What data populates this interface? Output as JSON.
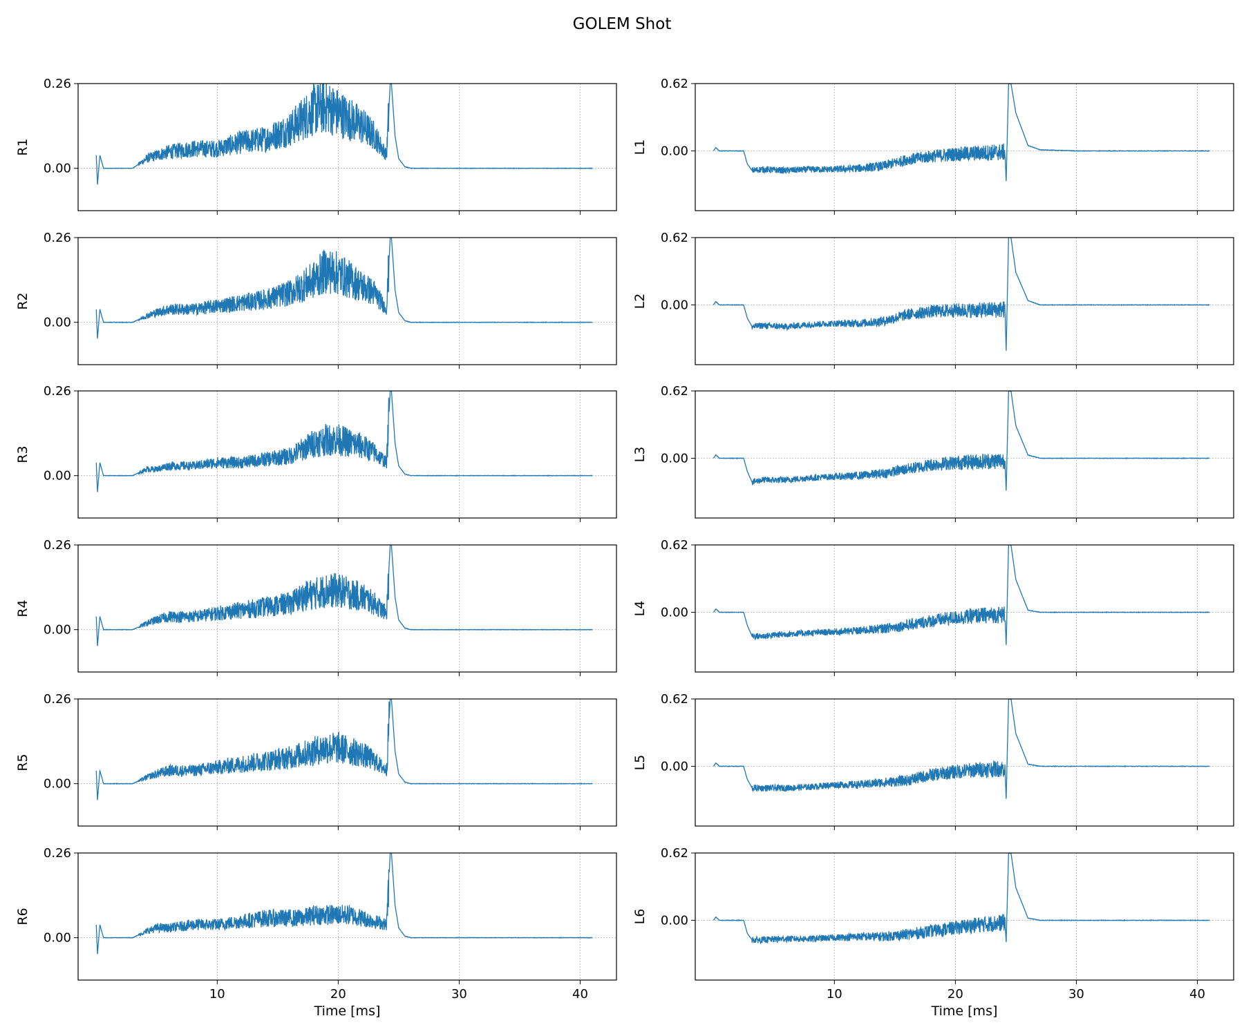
{
  "figure": {
    "title": "GOLEM Shot"
  },
  "style": {
    "line_color": "#1f77b4",
    "grid_color": "#b0b0b0"
  },
  "chart_data": [
    {
      "type": "line",
      "name": "R1",
      "ylabel": "R1",
      "xlabel": "",
      "xlim": [
        -1.5,
        43
      ],
      "ylim": [
        -0.13,
        0.26
      ],
      "yticks": [
        0.0,
        0.26
      ],
      "ytick_labels": [
        "0.00",
        "0.26"
      ],
      "xticks": [
        10,
        20,
        30,
        40
      ],
      "xtick_labels": [],
      "grid": true,
      "series": [
        {
          "x": [
            0,
            0.1,
            0.3,
            0.6,
            3,
            4.2,
            5,
            6,
            8,
            10,
            12,
            14,
            16,
            17,
            18,
            19,
            20,
            21,
            22,
            23,
            24,
            24.3,
            24.4,
            24.7,
            25,
            25.5,
            26,
            30,
            35,
            41
          ],
          "y": [
            0.04,
            -0.05,
            0.04,
            0.0,
            0.0,
            0.03,
            0.04,
            0.05,
            0.06,
            0.06,
            0.08,
            0.09,
            0.12,
            0.15,
            0.18,
            0.19,
            0.17,
            0.15,
            0.13,
            0.1,
            0.04,
            0.26,
            0.26,
            0.1,
            0.03,
            0.005,
            0.0,
            0.0,
            0.0,
            0.0
          ]
        }
      ]
    },
    {
      "type": "line",
      "name": "L1",
      "ylabel": "L1",
      "xlabel": "",
      "xlim": [
        -1.5,
        43
      ],
      "ylim": [
        -0.55,
        0.62
      ],
      "yticks": [
        0.0,
        0.62
      ],
      "ytick_labels": [
        "0.00",
        "0.62"
      ],
      "xticks": [
        10,
        20,
        30,
        40
      ],
      "xtick_labels": [],
      "grid": true,
      "series": [
        {
          "x": [
            0,
            0.2,
            0.5,
            2.5,
            2.8,
            3.2,
            4,
            6,
            8,
            10,
            12,
            14,
            16,
            18,
            20,
            22,
            24.1,
            24.2,
            24.4,
            24.6,
            25,
            26,
            27,
            30,
            35,
            41
          ],
          "y": [
            0.0,
            0.03,
            0.0,
            0.0,
            -0.12,
            -0.18,
            -0.17,
            -0.18,
            -0.17,
            -0.17,
            -0.16,
            -0.14,
            -0.08,
            -0.05,
            -0.03,
            -0.02,
            -0.01,
            -0.28,
            0.62,
            0.62,
            0.35,
            0.05,
            0.01,
            0.0,
            0.0,
            0.0
          ]
        }
      ]
    },
    {
      "type": "line",
      "name": "R2",
      "ylabel": "R2",
      "xlabel": "",
      "xlim": [
        -1.5,
        43
      ],
      "ylim": [
        -0.13,
        0.26
      ],
      "yticks": [
        0.0,
        0.26
      ],
      "ytick_labels": [
        "0.00",
        "0.26"
      ],
      "xticks": [
        10,
        20,
        30,
        40
      ],
      "xtick_labels": [],
      "grid": true,
      "series": [
        {
          "x": [
            0,
            0.1,
            0.3,
            0.6,
            3,
            4.2,
            5,
            6,
            8,
            10,
            12,
            14,
            16,
            17,
            18,
            19,
            20,
            21,
            22,
            23,
            24,
            24.3,
            24.4,
            24.7,
            25,
            25.5,
            26,
            30,
            35,
            41
          ],
          "y": [
            0.04,
            -0.05,
            0.04,
            0.0,
            0.0,
            0.02,
            0.03,
            0.04,
            0.04,
            0.05,
            0.06,
            0.07,
            0.09,
            0.11,
            0.13,
            0.16,
            0.15,
            0.13,
            0.11,
            0.09,
            0.04,
            0.26,
            0.26,
            0.1,
            0.03,
            0.005,
            0.0,
            0.0,
            0.0,
            0.0
          ]
        }
      ]
    },
    {
      "type": "line",
      "name": "L2",
      "ylabel": "L2",
      "xlabel": "",
      "xlim": [
        -1.5,
        43
      ],
      "ylim": [
        -0.55,
        0.62
      ],
      "yticks": [
        0.0,
        0.62
      ],
      "ytick_labels": [
        "0.00",
        "0.62"
      ],
      "xticks": [
        10,
        20,
        30,
        40
      ],
      "xtick_labels": [],
      "grid": true,
      "series": [
        {
          "x": [
            0,
            0.2,
            0.5,
            2.5,
            2.8,
            3.2,
            4,
            6,
            8,
            10,
            12,
            14,
            16,
            18,
            20,
            22,
            24.1,
            24.2,
            24.4,
            24.6,
            25,
            26,
            27,
            30,
            35,
            41
          ],
          "y": [
            0.0,
            0.03,
            0.0,
            0.0,
            -0.12,
            -0.2,
            -0.19,
            -0.2,
            -0.18,
            -0.17,
            -0.17,
            -0.15,
            -0.09,
            -0.06,
            -0.05,
            -0.05,
            -0.04,
            -0.42,
            0.62,
            0.62,
            0.3,
            0.04,
            0.0,
            0.0,
            0.0,
            0.0
          ]
        }
      ]
    },
    {
      "type": "line",
      "name": "R3",
      "ylabel": "R3",
      "xlabel": "",
      "xlim": [
        -1.5,
        43
      ],
      "ylim": [
        -0.13,
        0.26
      ],
      "yticks": [
        0.0,
        0.26
      ],
      "ytick_labels": [
        "0.00",
        "0.26"
      ],
      "xticks": [
        10,
        20,
        30,
        40
      ],
      "xtick_labels": [],
      "grid": true,
      "series": [
        {
          "x": [
            0,
            0.1,
            0.3,
            0.6,
            3,
            4.2,
            5,
            6,
            8,
            10,
            12,
            14,
            16,
            17,
            18,
            19,
            20,
            21,
            22,
            23,
            24,
            24.3,
            24.4,
            24.7,
            25,
            25.5,
            26,
            30,
            35,
            41
          ],
          "y": [
            0.04,
            -0.05,
            0.04,
            0.0,
            0.0,
            0.02,
            0.02,
            0.03,
            0.03,
            0.04,
            0.04,
            0.05,
            0.06,
            0.08,
            0.1,
            0.11,
            0.11,
            0.1,
            0.09,
            0.07,
            0.04,
            0.26,
            0.26,
            0.1,
            0.03,
            0.005,
            0.0,
            0.0,
            0.0,
            0.0
          ]
        }
      ]
    },
    {
      "type": "line",
      "name": "L3",
      "ylabel": "L3",
      "xlabel": "",
      "xlim": [
        -1.5,
        43
      ],
      "ylim": [
        -0.55,
        0.62
      ],
      "yticks": [
        0.0,
        0.62
      ],
      "ytick_labels": [
        "0.00",
        "0.62"
      ],
      "xticks": [
        10,
        20,
        30,
        40
      ],
      "xtick_labels": [],
      "grid": true,
      "series": [
        {
          "x": [
            0,
            0.2,
            0.5,
            2.5,
            2.8,
            3.2,
            4,
            6,
            8,
            10,
            12,
            14,
            16,
            18,
            20,
            22,
            24.1,
            24.2,
            24.4,
            24.6,
            25,
            26,
            27,
            30,
            35,
            41
          ],
          "y": [
            0.0,
            0.03,
            0.0,
            0.0,
            -0.12,
            -0.22,
            -0.2,
            -0.2,
            -0.18,
            -0.17,
            -0.16,
            -0.14,
            -0.1,
            -0.06,
            -0.04,
            -0.03,
            -0.02,
            -0.3,
            0.62,
            0.62,
            0.3,
            0.03,
            0.0,
            0.0,
            0.0,
            0.0
          ]
        }
      ]
    },
    {
      "type": "line",
      "name": "R4",
      "ylabel": "R4",
      "xlabel": "",
      "xlim": [
        -1.5,
        43
      ],
      "ylim": [
        -0.13,
        0.26
      ],
      "yticks": [
        0.0,
        0.26
      ],
      "ytick_labels": [
        "0.00",
        "0.26"
      ],
      "xticks": [
        10,
        20,
        30,
        40
      ],
      "xtick_labels": [],
      "grid": true,
      "series": [
        {
          "x": [
            0,
            0.1,
            0.3,
            0.6,
            3,
            4.2,
            5,
            6,
            8,
            10,
            12,
            14,
            16,
            17,
            18,
            19,
            20,
            21,
            22,
            23,
            24,
            24.3,
            24.4,
            24.7,
            25,
            25.5,
            26,
            30,
            35,
            41
          ],
          "y": [
            0.04,
            -0.05,
            0.04,
            0.0,
            0.0,
            0.02,
            0.03,
            0.04,
            0.04,
            0.05,
            0.06,
            0.07,
            0.08,
            0.1,
            0.11,
            0.12,
            0.12,
            0.11,
            0.1,
            0.08,
            0.05,
            0.26,
            0.26,
            0.1,
            0.03,
            0.005,
            0.0,
            0.0,
            0.0,
            0.0
          ]
        }
      ]
    },
    {
      "type": "line",
      "name": "L4",
      "ylabel": "L4",
      "xlabel": "",
      "xlim": [
        -1.5,
        43
      ],
      "ylim": [
        -0.55,
        0.62
      ],
      "yticks": [
        0.0,
        0.62
      ],
      "ytick_labels": [
        "0.00",
        "0.62"
      ],
      "xticks": [
        10,
        20,
        30,
        40
      ],
      "xtick_labels": [],
      "grid": true,
      "series": [
        {
          "x": [
            0,
            0.2,
            0.5,
            2.5,
            2.8,
            3.2,
            4,
            6,
            8,
            10,
            12,
            14,
            16,
            18,
            20,
            22,
            24.1,
            24.2,
            24.4,
            24.6,
            25,
            26,
            27,
            30,
            35,
            41
          ],
          "y": [
            0.0,
            0.03,
            0.0,
            0.0,
            -0.12,
            -0.22,
            -0.22,
            -0.2,
            -0.19,
            -0.18,
            -0.17,
            -0.15,
            -0.12,
            -0.08,
            -0.05,
            -0.03,
            -0.02,
            -0.3,
            0.62,
            0.62,
            0.3,
            0.02,
            0.0,
            0.0,
            0.0,
            0.0
          ]
        }
      ]
    },
    {
      "type": "line",
      "name": "R5",
      "ylabel": "R5",
      "xlabel": "",
      "xlim": [
        -1.5,
        43
      ],
      "ylim": [
        -0.13,
        0.26
      ],
      "yticks": [
        0.0,
        0.26
      ],
      "ytick_labels": [
        "0.00",
        "0.26"
      ],
      "xticks": [
        10,
        20,
        30,
        40
      ],
      "xtick_labels": [],
      "grid": true,
      "series": [
        {
          "x": [
            0,
            0.1,
            0.3,
            0.6,
            3,
            4.2,
            5,
            6,
            8,
            10,
            12,
            14,
            16,
            17,
            18,
            19,
            20,
            21,
            22,
            23,
            24,
            24.3,
            24.4,
            24.7,
            25,
            25.5,
            26,
            30,
            35,
            41
          ],
          "y": [
            0.04,
            -0.05,
            0.04,
            0.0,
            0.0,
            0.02,
            0.03,
            0.04,
            0.04,
            0.05,
            0.06,
            0.07,
            0.08,
            0.09,
            0.1,
            0.11,
            0.11,
            0.1,
            0.09,
            0.07,
            0.04,
            0.26,
            0.26,
            0.1,
            0.03,
            0.005,
            0.0,
            0.0,
            0.0,
            0.0
          ]
        }
      ]
    },
    {
      "type": "line",
      "name": "L5",
      "ylabel": "L5",
      "xlabel": "",
      "xlim": [
        -1.5,
        43
      ],
      "ylim": [
        -0.55,
        0.62
      ],
      "yticks": [
        0.0,
        0.62
      ],
      "ytick_labels": [
        "0.00",
        "0.62"
      ],
      "xticks": [
        10,
        20,
        30,
        40
      ],
      "xtick_labels": [],
      "grid": true,
      "series": [
        {
          "x": [
            0,
            0.2,
            0.5,
            2.5,
            2.8,
            3.2,
            4,
            6,
            8,
            10,
            12,
            14,
            16,
            18,
            20,
            22,
            24.1,
            24.2,
            24.4,
            24.6,
            25,
            26,
            27,
            30,
            35,
            41
          ],
          "y": [
            0.0,
            0.03,
            0.0,
            0.0,
            -0.12,
            -0.2,
            -0.2,
            -0.2,
            -0.19,
            -0.17,
            -0.17,
            -0.15,
            -0.13,
            -0.08,
            -0.05,
            -0.03,
            -0.02,
            -0.3,
            0.62,
            0.62,
            0.3,
            0.02,
            0.0,
            0.0,
            0.0,
            0.0
          ]
        }
      ]
    },
    {
      "type": "line",
      "name": "R6",
      "ylabel": "R6",
      "xlabel": "Time [ms]",
      "xlim": [
        -1.5,
        43
      ],
      "ylim": [
        -0.13,
        0.26
      ],
      "yticks": [
        0.0,
        0.26
      ],
      "ytick_labels": [
        "0.00",
        "0.26"
      ],
      "xticks": [
        10,
        20,
        30,
        40
      ],
      "xtick_labels": [
        "10",
        "20",
        "30",
        "40"
      ],
      "grid": true,
      "series": [
        {
          "x": [
            0,
            0.1,
            0.3,
            0.6,
            3,
            4.2,
            5,
            6,
            8,
            10,
            12,
            14,
            16,
            17,
            18,
            19,
            20,
            21,
            22,
            23,
            24,
            24.3,
            24.4,
            24.7,
            25,
            25.5,
            26,
            30,
            35,
            41
          ],
          "y": [
            0.04,
            -0.05,
            0.04,
            0.0,
            0.0,
            0.02,
            0.03,
            0.03,
            0.04,
            0.04,
            0.05,
            0.06,
            0.06,
            0.06,
            0.07,
            0.07,
            0.07,
            0.07,
            0.06,
            0.05,
            0.04,
            0.26,
            0.26,
            0.1,
            0.03,
            0.005,
            0.0,
            0.0,
            0.0,
            0.0
          ]
        }
      ]
    },
    {
      "type": "line",
      "name": "L6",
      "ylabel": "L6",
      "xlabel": "Time [ms]",
      "xlim": [
        -1.5,
        43
      ],
      "ylim": [
        -0.55,
        0.62
      ],
      "yticks": [
        0.0,
        0.62
      ],
      "ytick_labels": [
        "0.00",
        "0.62"
      ],
      "xticks": [
        10,
        20,
        30,
        40
      ],
      "xtick_labels": [
        "10",
        "20",
        "30",
        "40"
      ],
      "grid": true,
      "series": [
        {
          "x": [
            0,
            0.2,
            0.5,
            2.5,
            2.8,
            3.2,
            4,
            6,
            8,
            10,
            12,
            14,
            16,
            18,
            20,
            22,
            24.1,
            24.2,
            24.4,
            24.6,
            25,
            26,
            27,
            30,
            35,
            41
          ],
          "y": [
            0.0,
            0.03,
            0.0,
            0.0,
            -0.12,
            -0.18,
            -0.18,
            -0.17,
            -0.17,
            -0.16,
            -0.15,
            -0.15,
            -0.13,
            -0.1,
            -0.07,
            -0.04,
            -0.02,
            -0.2,
            0.62,
            0.62,
            0.3,
            0.02,
            0.0,
            0.0,
            0.0,
            0.0
          ]
        }
      ]
    }
  ]
}
